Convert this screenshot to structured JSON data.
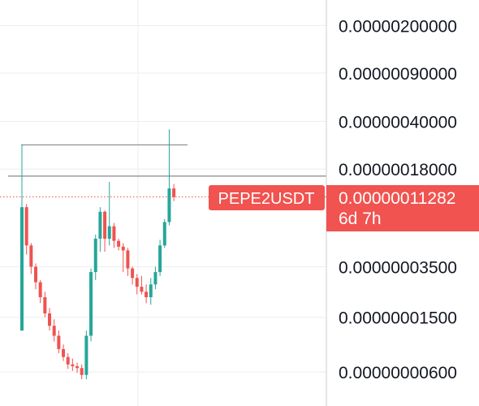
{
  "chart_data": {
    "type": "candlestick",
    "symbol": "PEPE2USDT",
    "y_scale": "log",
    "grid": true,
    "price_axis_labels": [
      "0.00000200000",
      "0.00000090000",
      "0.00000040000",
      "0.00000018000",
      "0.00000003500",
      "0.00000001500",
      "0.00000000600"
    ],
    "price_axis_values": [
      2e-06,
      9e-07,
      4e-07,
      1.8e-07,
      3.5e-08,
      1.5e-08,
      6e-09
    ],
    "last_price": {
      "value": 1.1282e-07,
      "label": "0.00000011282",
      "countdown": "6d 7h"
    },
    "horizontal_lines": [
      {
        "value": 2.7e-07,
        "style": "solid",
        "color": "#888888"
      },
      {
        "value": 1.6e-07,
        "style": "solid",
        "color": "#888888"
      }
    ],
    "candles": [
      {
        "o": 1.2e-08,
        "h": 2.7e-07,
        "l": 1.2e-08,
        "c": 9.5e-08
      },
      {
        "o": 9.5e-08,
        "h": 1e-07,
        "l": 4.3e-08,
        "c": 5e-08
      },
      {
        "o": 5e-08,
        "h": 5.2e-08,
        "l": 3.1e-08,
        "c": 3.5e-08
      },
      {
        "o": 3.5e-08,
        "h": 3.7e-08,
        "l": 2.4e-08,
        "c": 2.7e-08
      },
      {
        "o": 2.7e-08,
        "h": 2.8e-08,
        "l": 1.9e-08,
        "c": 2.1e-08
      },
      {
        "o": 2.1e-08,
        "h": 2.3e-08,
        "l": 1.5e-08,
        "c": 1.6e-08
      },
      {
        "o": 1.6e-08,
        "h": 1.75e-08,
        "l": 1.2e-08,
        "c": 1.3e-08
      },
      {
        "o": 1.3e-08,
        "h": 1.45e-08,
        "l": 1e-08,
        "c": 1.1e-08
      },
      {
        "o": 1.1e-08,
        "h": 1.2e-08,
        "l": 8.2e-09,
        "c": 8.8e-09
      },
      {
        "o": 8.8e-09,
        "h": 9.5e-09,
        "l": 7.2e-09,
        "c": 7.7e-09
      },
      {
        "o": 7.7e-09,
        "h": 8.2e-09,
        "l": 6.3e-09,
        "c": 6.8e-09
      },
      {
        "o": 6.8e-09,
        "h": 7.5e-09,
        "l": 6.1e-09,
        "c": 6.6e-09
      },
      {
        "o": 6.6e-09,
        "h": 7e-09,
        "l": 5.9e-09,
        "c": 6.4e-09
      },
      {
        "o": 6.4e-09,
        "h": 6.8e-09,
        "l": 5.3e-09,
        "c": 5.7e-09
      },
      {
        "o": 5.7e-09,
        "h": 1.2e-08,
        "l": 5.3e-09,
        "c": 1.1e-08
      },
      {
        "o": 1.1e-08,
        "h": 3.4e-08,
        "l": 1e-08,
        "c": 3.2e-08
      },
      {
        "o": 3.2e-08,
        "h": 6e-08,
        "l": 2.8e-08,
        "c": 5.6e-08
      },
      {
        "o": 5.6e-08,
        "h": 9.5e-08,
        "l": 4.5e-08,
        "c": 8.8e-08
      },
      {
        "o": 8.8e-08,
        "h": 9e-08,
        "l": 4.5e-08,
        "c": 5.6e-08
      },
      {
        "o": 5.6e-08,
        "h": 1.45e-07,
        "l": 5e-08,
        "c": 6.9e-08
      },
      {
        "o": 6.9e-08,
        "h": 7.3e-08,
        "l": 4.8e-08,
        "c": 5.4e-08
      },
      {
        "o": 5.4e-08,
        "h": 5.6e-08,
        "l": 4.6e-08,
        "c": 4.9e-08
      },
      {
        "o": 4.9e-08,
        "h": 5.2e-08,
        "l": 3.2e-08,
        "c": 4.6e-08
      },
      {
        "o": 4.6e-08,
        "h": 4.8e-08,
        "l": 3e-08,
        "c": 3.4e-08
      },
      {
        "o": 3.4e-08,
        "h": 3.5e-08,
        "l": 2.6e-08,
        "c": 2.9e-08
      },
      {
        "o": 2.9e-08,
        "h": 3.1e-08,
        "l": 2.2e-08,
        "c": 2.5e-08
      },
      {
        "o": 2.5e-08,
        "h": 3e-08,
        "l": 2.2e-08,
        "c": 2.3e-08
      },
      {
        "o": 2.3e-08,
        "h": 2.6e-08,
        "l": 1.9e-08,
        "c": 2.1e-08
      },
      {
        "o": 2.1e-08,
        "h": 2.9e-08,
        "l": 1.85e-08,
        "c": 2.6e-08
      },
      {
        "o": 2.6e-08,
        "h": 3.5e-08,
        "l": 2.4e-08,
        "c": 3.2e-08
      },
      {
        "o": 3.2e-08,
        "h": 5.5e-08,
        "l": 3e-08,
        "c": 5e-08
      },
      {
        "o": 5e-08,
        "h": 7.8e-08,
        "l": 4.8e-08,
        "c": 7.4e-08
      },
      {
        "o": 7.4e-08,
        "h": 3.5e-07,
        "l": 7e-08,
        "c": 1.3e-07
      },
      {
        "o": 1.3e-07,
        "h": 1.4e-07,
        "l": 1.05e-07,
        "c": 1.1282e-07
      }
    ]
  },
  "colors": {
    "up": "#26a69a",
    "down": "#ef5350",
    "grid": "#eeeeee",
    "axis_border": "#cccccc",
    "price_label_bg": "#f05350",
    "price_label_text": "#ffffff",
    "axis_text": "#131722"
  }
}
